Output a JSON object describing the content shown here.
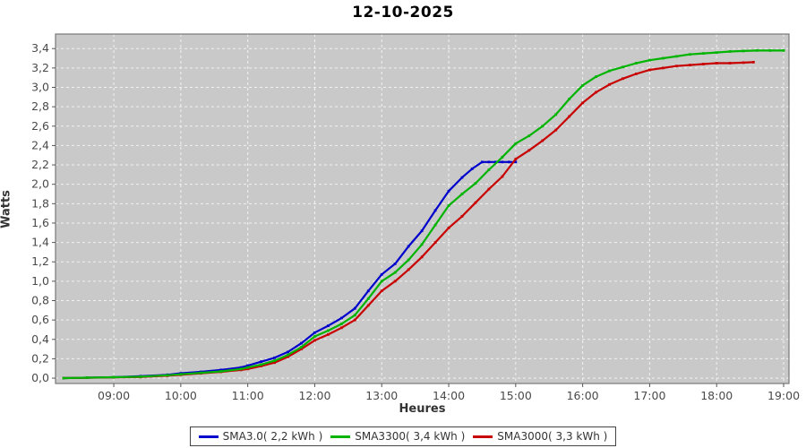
{
  "title": "12-10-2025",
  "chart_data": {
    "type": "line",
    "title": "12-10-2025",
    "xlabel": "Heures",
    "ylabel": "Watts",
    "plot_background": "#c9c9c9",
    "grid": {
      "visible": true,
      "style": "dashed",
      "color": "#f2f2f2"
    },
    "legend_position": "bottom",
    "xlim": [
      8.13,
      19.08
    ],
    "ylim": [
      -0.055,
      3.55
    ],
    "x_tick_hours": [
      9,
      10,
      11,
      12,
      13,
      14,
      15,
      16,
      17,
      18,
      19
    ],
    "x_tick_labels": [
      "09:00",
      "10:00",
      "11:00",
      "12:00",
      "13:00",
      "14:00",
      "15:00",
      "16:00",
      "17:00",
      "18:00",
      "19:00"
    ],
    "y_tick_values": [
      0.0,
      0.2,
      0.4,
      0.6,
      0.8,
      1.0,
      1.2,
      1.4,
      1.6,
      1.8,
      2.0,
      2.2,
      2.4,
      2.6,
      2.8,
      3.0,
      3.2,
      3.4
    ],
    "y_tick_labels": [
      "0,0",
      "0,2",
      "0,4",
      "0,6",
      "0,8",
      "1,0",
      "1,2",
      "1,4",
      "1,6",
      "1,8",
      "2,0",
      "2,2",
      "2,4",
      "2,6",
      "2,8",
      "3,0",
      "3,2",
      "3,4"
    ],
    "series": [
      {
        "name": "SMA3.0( 2,2 kWh )",
        "color": "#0000cc",
        "total_kwh": "2,2",
        "points": [
          [
            8.25,
            0.0
          ],
          [
            8.6,
            0.005
          ],
          [
            9.0,
            0.01
          ],
          [
            9.4,
            0.02
          ],
          [
            9.8,
            0.035
          ],
          [
            10.0,
            0.05
          ],
          [
            10.3,
            0.065
          ],
          [
            10.6,
            0.085
          ],
          [
            10.9,
            0.11
          ],
          [
            11.0,
            0.13
          ],
          [
            11.2,
            0.17
          ],
          [
            11.4,
            0.21
          ],
          [
            11.6,
            0.27
          ],
          [
            11.8,
            0.36
          ],
          [
            12.0,
            0.47
          ],
          [
            12.2,
            0.54
          ],
          [
            12.4,
            0.62
          ],
          [
            12.6,
            0.72
          ],
          [
            12.8,
            0.9
          ],
          [
            13.0,
            1.07
          ],
          [
            13.2,
            1.18
          ],
          [
            13.4,
            1.36
          ],
          [
            13.6,
            1.52
          ],
          [
            13.8,
            1.73
          ],
          [
            14.0,
            1.93
          ],
          [
            14.2,
            2.07
          ],
          [
            14.35,
            2.16
          ],
          [
            14.5,
            2.23
          ],
          [
            14.6,
            2.23
          ],
          [
            14.7,
            2.23
          ],
          [
            14.8,
            2.23
          ],
          [
            14.9,
            2.23
          ],
          [
            15.0,
            2.23
          ]
        ]
      },
      {
        "name": "SMA3300( 3,4 kWh )",
        "color": "#00b400",
        "total_kwh": "3,4",
        "points": [
          [
            8.25,
            0.0
          ],
          [
            8.6,
            0.005
          ],
          [
            9.0,
            0.01
          ],
          [
            9.4,
            0.015
          ],
          [
            9.8,
            0.03
          ],
          [
            10.0,
            0.04
          ],
          [
            10.3,
            0.055
          ],
          [
            10.6,
            0.07
          ],
          [
            10.9,
            0.095
          ],
          [
            11.0,
            0.11
          ],
          [
            11.2,
            0.14
          ],
          [
            11.4,
            0.18
          ],
          [
            11.6,
            0.24
          ],
          [
            11.8,
            0.32
          ],
          [
            12.0,
            0.43
          ],
          [
            12.2,
            0.49
          ],
          [
            12.4,
            0.56
          ],
          [
            12.6,
            0.65
          ],
          [
            12.8,
            0.82
          ],
          [
            13.0,
            1.0
          ],
          [
            13.2,
            1.09
          ],
          [
            13.4,
            1.22
          ],
          [
            13.6,
            1.38
          ],
          [
            13.8,
            1.58
          ],
          [
            14.0,
            1.78
          ],
          [
            14.2,
            1.9
          ],
          [
            14.4,
            2.01
          ],
          [
            14.6,
            2.15
          ],
          [
            14.8,
            2.28
          ],
          [
            15.0,
            2.42
          ],
          [
            15.2,
            2.5
          ],
          [
            15.4,
            2.6
          ],
          [
            15.6,
            2.72
          ],
          [
            15.8,
            2.88
          ],
          [
            16.0,
            3.02
          ],
          [
            16.2,
            3.11
          ],
          [
            16.4,
            3.17
          ],
          [
            16.6,
            3.21
          ],
          [
            16.8,
            3.25
          ],
          [
            17.0,
            3.28
          ],
          [
            17.2,
            3.3
          ],
          [
            17.4,
            3.32
          ],
          [
            17.6,
            3.34
          ],
          [
            17.8,
            3.35
          ],
          [
            18.0,
            3.36
          ],
          [
            18.2,
            3.37
          ],
          [
            18.4,
            3.375
          ],
          [
            18.6,
            3.38
          ],
          [
            18.8,
            3.38
          ],
          [
            19.0,
            3.38
          ]
        ]
      },
      {
        "name": "SMA3000( 3,3 kWh )",
        "color": "#c80000",
        "total_kwh": "3,3",
        "points": [
          [
            8.25,
            0.0
          ],
          [
            8.6,
            0.004
          ],
          [
            9.0,
            0.008
          ],
          [
            9.4,
            0.012
          ],
          [
            9.8,
            0.025
          ],
          [
            10.0,
            0.035
          ],
          [
            10.3,
            0.05
          ],
          [
            10.6,
            0.065
          ],
          [
            10.9,
            0.085
          ],
          [
            11.0,
            0.095
          ],
          [
            11.2,
            0.125
          ],
          [
            11.4,
            0.16
          ],
          [
            11.6,
            0.22
          ],
          [
            11.8,
            0.3
          ],
          [
            12.0,
            0.39
          ],
          [
            12.2,
            0.45
          ],
          [
            12.4,
            0.52
          ],
          [
            12.6,
            0.6
          ],
          [
            12.8,
            0.75
          ],
          [
            13.0,
            0.9
          ],
          [
            13.2,
            1.0
          ],
          [
            13.4,
            1.12
          ],
          [
            13.6,
            1.25
          ],
          [
            13.8,
            1.4
          ],
          [
            14.0,
            1.55
          ],
          [
            14.2,
            1.67
          ],
          [
            14.4,
            1.81
          ],
          [
            14.6,
            1.95
          ],
          [
            14.8,
            2.08
          ],
          [
            15.0,
            2.26
          ],
          [
            15.2,
            2.35
          ],
          [
            15.4,
            2.45
          ],
          [
            15.6,
            2.56
          ],
          [
            15.8,
            2.7
          ],
          [
            16.0,
            2.84
          ],
          [
            16.2,
            2.95
          ],
          [
            16.4,
            3.03
          ],
          [
            16.6,
            3.09
          ],
          [
            16.8,
            3.14
          ],
          [
            17.0,
            3.18
          ],
          [
            17.2,
            3.2
          ],
          [
            17.4,
            3.22
          ],
          [
            17.6,
            3.23
          ],
          [
            17.8,
            3.24
          ],
          [
            18.0,
            3.25
          ],
          [
            18.2,
            3.25
          ],
          [
            18.4,
            3.255
          ],
          [
            18.55,
            3.26
          ]
        ]
      }
    ]
  },
  "colors": {
    "plot_background": "#c9c9c9",
    "grid_line": "#f2f2f2",
    "axis_line": "#555555",
    "tick_label": "#4a4a4a",
    "series_blue": "#0000cc",
    "series_green": "#00b400",
    "series_red": "#c80000"
  }
}
